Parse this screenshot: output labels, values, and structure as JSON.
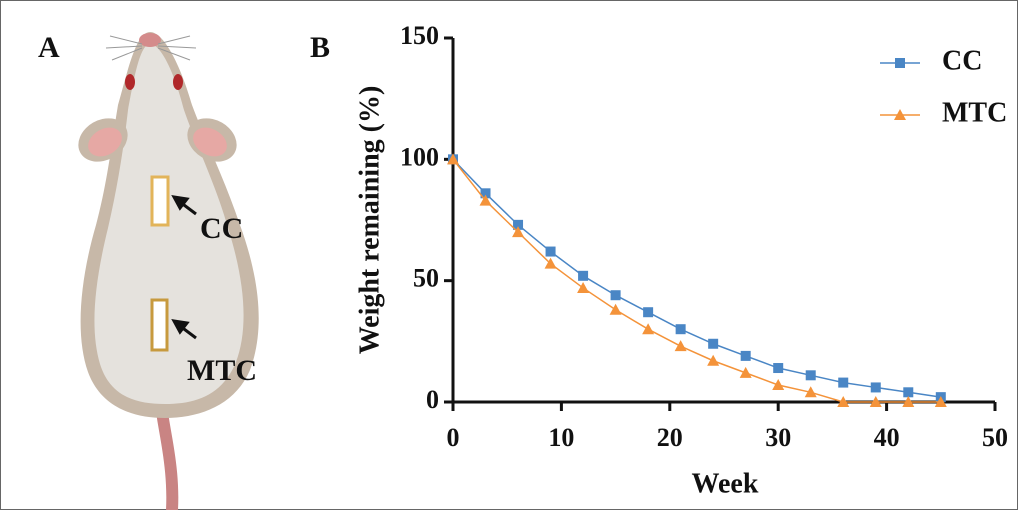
{
  "panel_a": {
    "label": "A",
    "annotations": [
      "CC",
      "MTC"
    ]
  },
  "chart_data": {
    "type": "line",
    "panel_label": "B",
    "x_label": "Week",
    "y_label": "Weight remaining (%)",
    "x": [
      0,
      3,
      6,
      9,
      12,
      15,
      18,
      21,
      24,
      27,
      30,
      33,
      36,
      39,
      42,
      45
    ],
    "series": [
      {
        "name": "CC",
        "color": "#4a86c5",
        "marker": "square",
        "values": [
          100,
          86,
          73,
          62,
          52,
          44,
          37,
          30,
          24,
          19,
          14,
          11,
          8,
          6,
          4,
          2
        ]
      },
      {
        "name": "MTC",
        "color": "#f4933a",
        "marker": "triangle",
        "values": [
          100,
          83,
          70,
          57,
          47,
          38,
          30,
          23,
          17,
          12,
          7,
          4,
          0,
          0,
          0,
          0
        ]
      }
    ],
    "xlim": [
      0,
      50
    ],
    "xticks": [
      0,
      10,
      20,
      30,
      40,
      50
    ],
    "ylim": [
      0,
      150
    ],
    "yticks": [
      0,
      50,
      100,
      150
    ],
    "legend": "upper right",
    "grid": false
  }
}
